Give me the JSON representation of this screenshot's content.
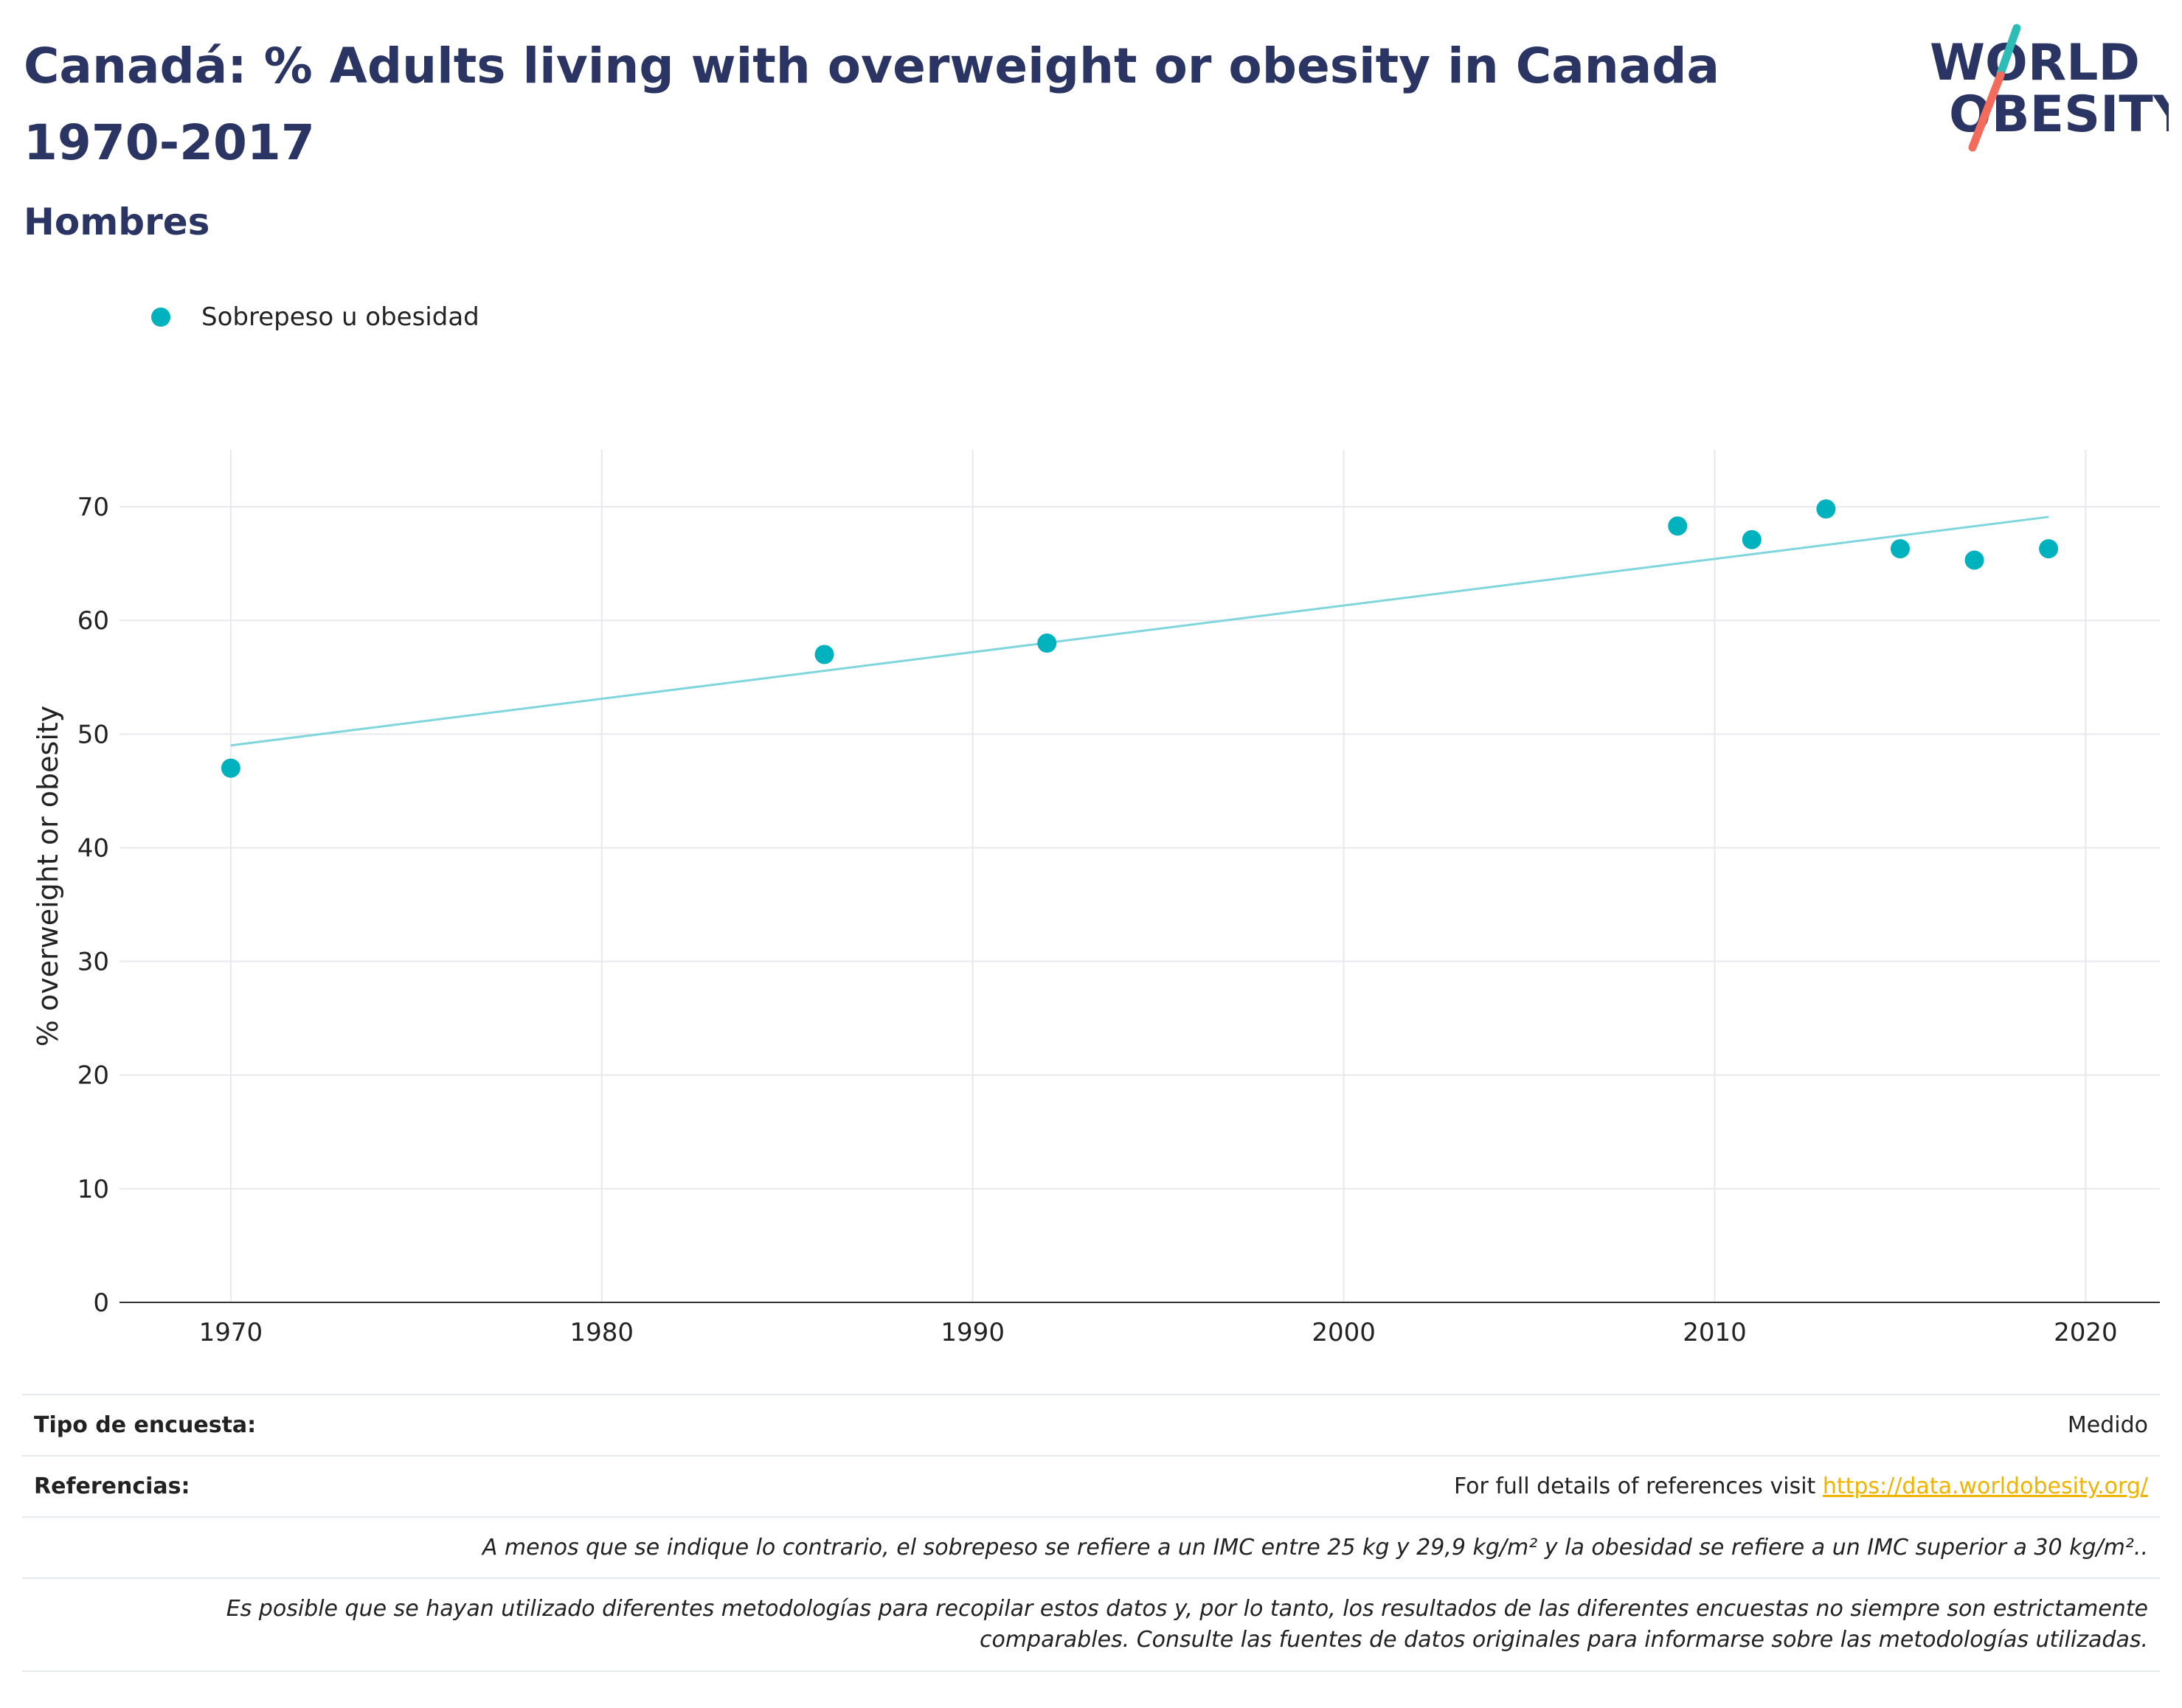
{
  "header": {
    "title": "Canadá: % Adults living with overweight or obesity in Canada 1970-2017",
    "subtitle": "Hombres"
  },
  "logo": {
    "line1": "WORLD",
    "line2": "OBESITY"
  },
  "colors": {
    "title": "#2a3564",
    "series": "#00b2bd",
    "trend": "#7fd6dd",
    "link": "#f0b400",
    "logo_teal": "#2dbdb6",
    "logo_coral": "#f26b5b"
  },
  "chart_data": {
    "type": "scatter",
    "title": "",
    "xlabel": "",
    "ylabel": "% overweight or obesity",
    "xlim": [
      1967,
      2022
    ],
    "ylim": [
      0,
      75
    ],
    "x_ticks": [
      1970,
      1980,
      1990,
      2000,
      2010,
      2020
    ],
    "y_ticks": [
      0,
      10,
      20,
      30,
      40,
      50,
      60,
      70
    ],
    "grid": true,
    "legend_position": "top-left",
    "series": [
      {
        "name": "Sobrepeso u obesidad",
        "x": [
          1970,
          1986,
          1992,
          2009,
          2011,
          2013,
          2015,
          2017,
          2019
        ],
        "y": [
          47,
          57,
          58,
          68.3,
          67.1,
          69.8,
          66.3,
          65.3,
          66.3
        ]
      }
    ],
    "trendline": {
      "x": [
        1970,
        2019
      ],
      "y": [
        49,
        69.1
      ]
    }
  },
  "footer": {
    "survey_label": "Tipo de encuesta:",
    "survey_value": "Medido",
    "refs_label": "Referencias:",
    "refs_text": "For full details of references visit ",
    "refs_link": "https://data.worldobesity.org/",
    "note1": "A menos que se indique lo contrario, el sobrepeso se refiere a un IMC entre 25 kg y 29,9 kg/m² y la obesidad se refiere a un IMC superior a 30 kg/m²..",
    "note2_line1": "Es posible que se hayan utilizado diferentes metodologías para recopilar estos datos y, por lo tanto, los resultados de las diferentes encuestas no siempre son estrictamente",
    "note2_line2": "comparables. Consulte las fuentes de datos originales para informarse sobre las metodologías utilizadas."
  }
}
